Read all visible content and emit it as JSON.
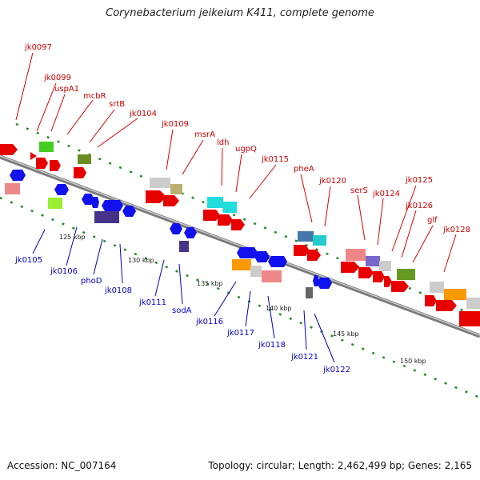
{
  "title": "Corynebacterium jeikeium K411, complete genome",
  "footer": {
    "accession": "Accession: NC_007164",
    "summary": "Topology: circular; Length: 2,462,499 bp; Genes: 2,165"
  },
  "colors": {
    "forward_label": "#cc0000",
    "reverse_label": "#0000cc",
    "backbone": "#8a8a8a",
    "dots": "#2a8a2a"
  },
  "ticks": [
    "125 kbp",
    "130 kbp",
    "135 kbp",
    "140 kbp",
    "145 kbp",
    "150 kbp"
  ],
  "forward_labels": [
    "jk0097",
    "jk0099",
    "uspA1",
    "mcbR",
    "srtB",
    "jk0104",
    "jk0109",
    "msrA",
    "ldh",
    "ugpQ",
    "jk0115",
    "pheA",
    "jk0120",
    "serS",
    "jk0124",
    "jk0125",
    "jk0126",
    "glf",
    "jk0128"
  ],
  "reverse_labels": [
    "jk0105",
    "jk0106",
    "phoD",
    "jk0108",
    "jk0111",
    "sodA",
    "jk0116",
    "jk0117",
    "jk0118",
    "jk0121",
    "jk0122"
  ]
}
